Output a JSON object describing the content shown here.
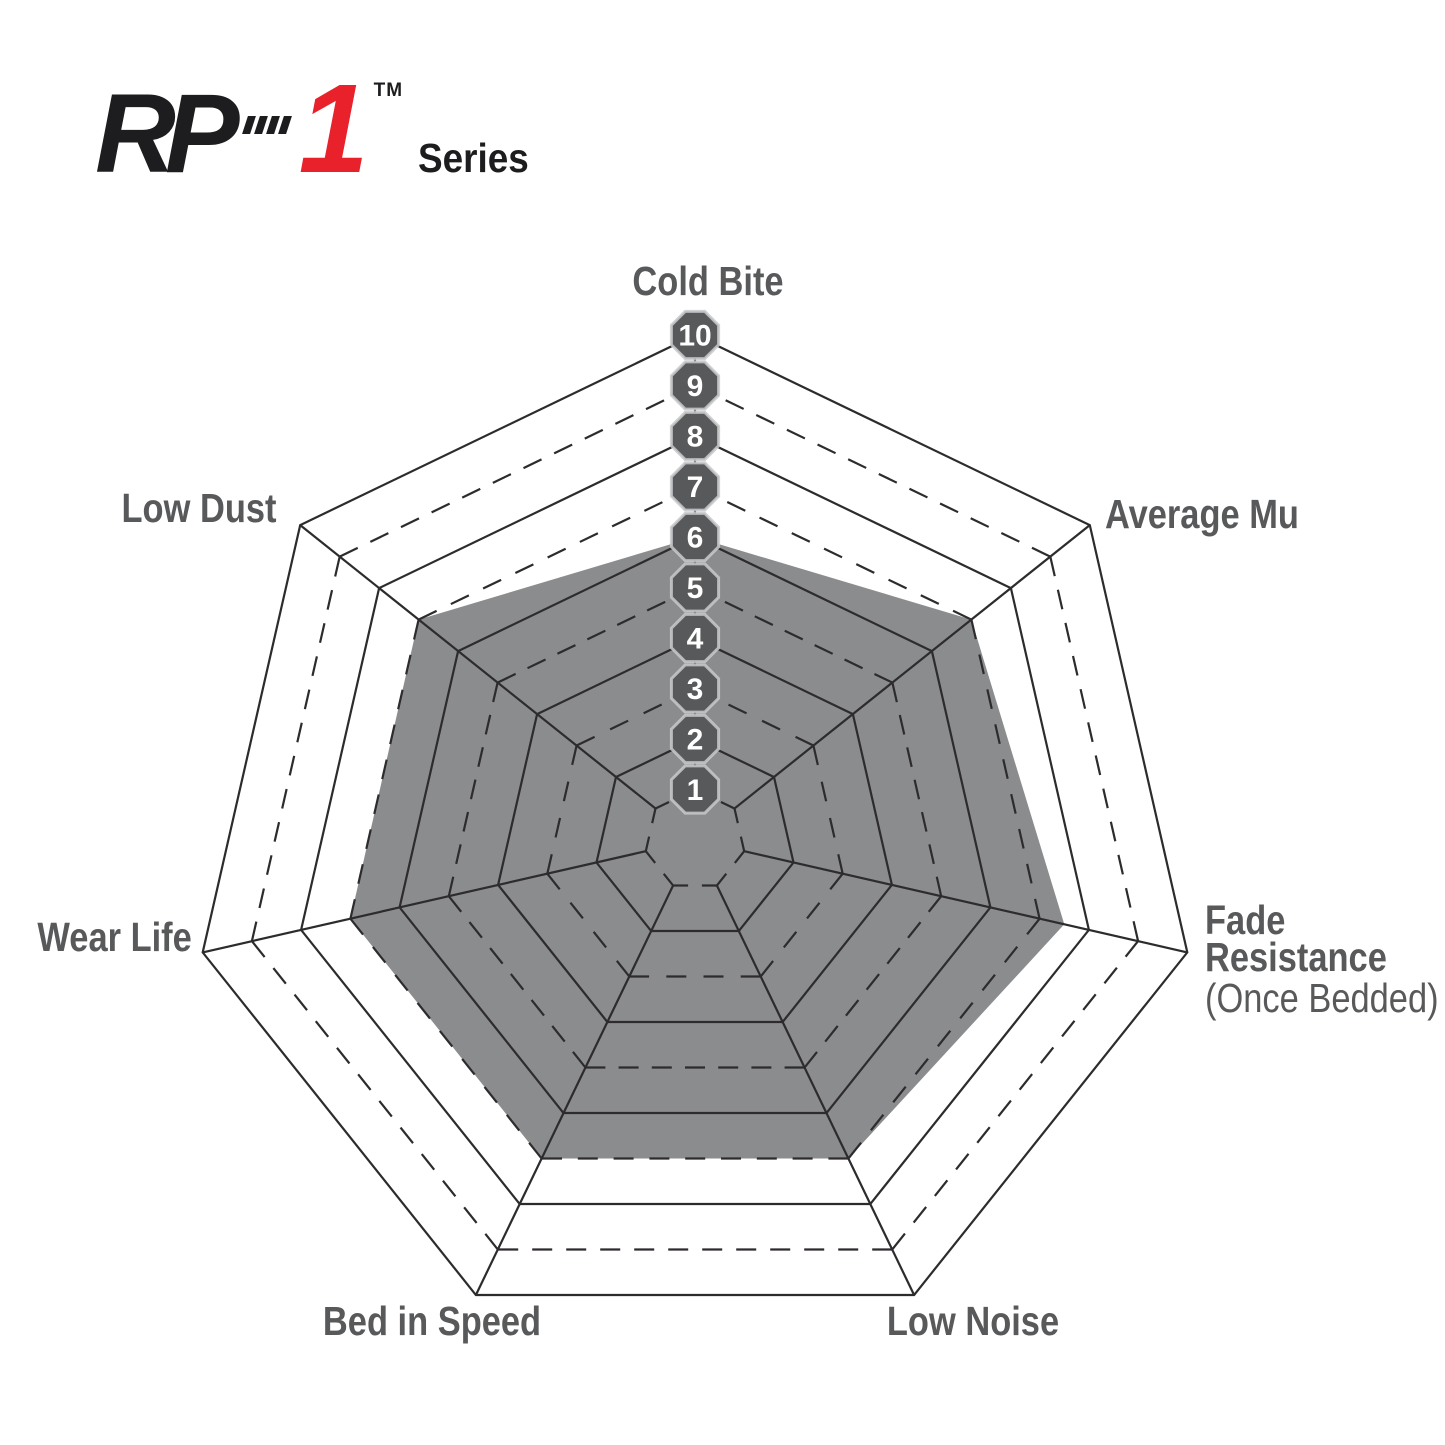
{
  "logo": {
    "rp": "RP",
    "one": "1",
    "tm": "TM",
    "series": "Series"
  },
  "colors": {
    "background": "#ffffff",
    "fill": "#8a8c8e",
    "grid_line": "#2d2b2d",
    "badge": "#58595b",
    "badge_stroke": "#c9cacc",
    "badge_text": "#ffffff",
    "label": "#58595b",
    "logo_black": "#1d1d1f",
    "logo_red": "#e8212b"
  },
  "chart_data": {
    "type": "radar",
    "title": "RP-1 Series",
    "scale": {
      "min": 1,
      "max": 10,
      "ring_style_even": "solid",
      "ring_style_odd": "dashed"
    },
    "ticks": [
      1,
      2,
      3,
      4,
      5,
      6,
      7,
      8,
      9,
      10
    ],
    "grid": true,
    "legend": "none",
    "axes": [
      {
        "label": "Cold Bite",
        "value": 6
      },
      {
        "label": "Average Mu",
        "value": 7
      },
      {
        "label": "Fade Resistance",
        "sublabel": "(Once Bedded)",
        "value": 7.5
      },
      {
        "label": "Low Noise",
        "value": 7
      },
      {
        "label": "Bed in Speed",
        "value": 7
      },
      {
        "label": "Wear Life",
        "value": 7
      },
      {
        "label": "Low Dust",
        "value": 7
      }
    ]
  }
}
